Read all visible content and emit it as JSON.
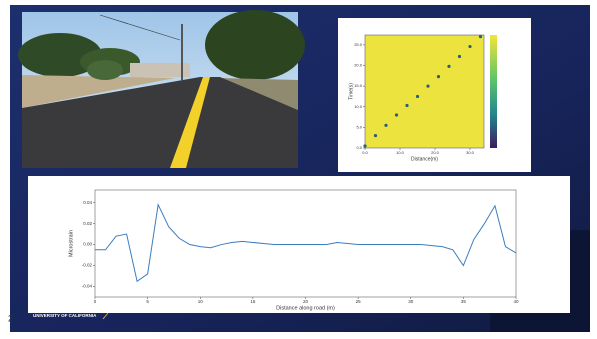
{
  "page_number": "2",
  "footer": {
    "logo_text": "UNIVERSITY OF CALIFORNIA"
  },
  "chart_data": [
    {
      "type": "scatter",
      "x_label": "Distance(m)",
      "y_label": "Time(s)",
      "x": [
        0,
        3,
        6,
        9,
        12,
        15,
        18,
        21,
        24,
        27,
        30,
        33
      ],
      "values": [
        0.5,
        3,
        5.5,
        8,
        10.3,
        12.5,
        15,
        17.3,
        19.8,
        22.2,
        24.6,
        27
      ],
      "color": "#2a5f7a",
      "background_color": "#ede33e",
      "xlim": [
        0,
        34
      ],
      "ylim": [
        0,
        27.4
      ],
      "xticks": [
        {
          "value": 0,
          "label": "0.0"
        },
        {
          "value": 10,
          "label": "10.0"
        },
        {
          "value": 20,
          "label": "20.0"
        },
        {
          "value": 30,
          "label": "30.0"
        }
      ],
      "yticks": [
        {
          "value": 0,
          "label": "0.0"
        },
        {
          "value": 5,
          "label": "5.0"
        },
        {
          "value": 10,
          "label": "10.0"
        },
        {
          "value": 15,
          "label": "15.0"
        },
        {
          "value": 20,
          "label": "20.0"
        },
        {
          "value": 25,
          "label": "25.0"
        }
      ]
    },
    {
      "type": "line",
      "x_label": "Distance along road (m)",
      "y_label": "Microstrain",
      "x": [
        0,
        1,
        2,
        3,
        4,
        5,
        6,
        7,
        8,
        9,
        10,
        11,
        12,
        13,
        14,
        15,
        16,
        17,
        18,
        19,
        20,
        21,
        22,
        23,
        24,
        25,
        26,
        27,
        28,
        29,
        30,
        31,
        32,
        33,
        34,
        35,
        36,
        37,
        38,
        39,
        40
      ],
      "values": [
        -0.005,
        -0.005,
        0.008,
        0.01,
        -0.035,
        -0.028,
        0.038,
        0.017,
        0.006,
        0.0,
        -0.002,
        -0.003,
        0.0,
        0.002,
        0.003,
        0.002,
        0.001,
        0.0,
        0.0,
        0.0,
        0.0,
        0.0,
        0.0,
        0.002,
        0.001,
        0.0,
        0.0,
        0.0,
        0.0,
        0.0,
        0.0,
        0.0,
        -0.001,
        -0.002,
        -0.005,
        -0.02,
        0.005,
        0.02,
        0.037,
        -0.002,
        -0.008
      ],
      "color": "#3b7dbf",
      "xlim": [
        0,
        40
      ],
      "ylim": [
        -0.05,
        0.052
      ],
      "xticks": [
        0,
        5,
        10,
        15,
        20,
        25,
        30,
        35,
        40
      ],
      "yticks": [
        {
          "value": -0.04,
          "label": "-0.04"
        },
        {
          "value": -0.02,
          "label": "-0.02"
        },
        {
          "value": 0,
          "label": "0.00"
        },
        {
          "value": 0.02,
          "label": "0.02"
        },
        {
          "value": 0.04,
          "label": "0.04"
        }
      ]
    }
  ]
}
